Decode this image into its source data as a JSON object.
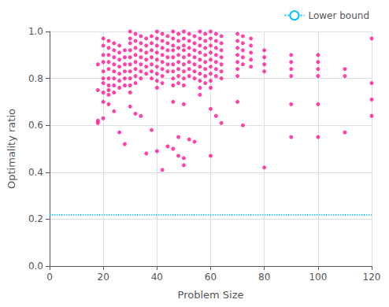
{
  "chart_data": {
    "type": "scatter",
    "xlabel": "Problem Size",
    "ylabel": "Optimality ratio",
    "color": "#FF1493",
    "x": [
      18,
      18,
      18,
      18,
      20,
      20,
      20,
      20,
      20,
      20,
      20,
      20,
      20,
      20,
      22,
      22,
      22,
      22,
      22,
      22,
      22,
      22,
      22,
      22,
      24,
      24,
      24,
      24,
      24,
      24,
      24,
      24,
      24,
      26,
      26,
      26,
      26,
      26,
      26,
      26,
      26,
      28,
      28,
      28,
      28,
      28,
      28,
      28,
      30,
      30,
      30,
      30,
      30,
      30,
      30,
      30,
      30,
      30,
      30,
      32,
      32,
      32,
      32,
      32,
      32,
      32,
      32,
      32,
      34,
      34,
      34,
      34,
      34,
      34,
      34,
      34,
      36,
      36,
      36,
      36,
      36,
      36,
      36,
      38,
      38,
      38,
      38,
      38,
      38,
      38,
      38,
      40,
      40,
      40,
      40,
      40,
      40,
      40,
      40,
      40,
      40,
      42,
      42,
      42,
      42,
      42,
      42,
      42,
      42,
      42,
      44,
      44,
      44,
      44,
      44,
      44,
      44,
      46,
      46,
      46,
      46,
      46,
      46,
      46,
      46,
      46,
      46,
      46,
      48,
      48,
      48,
      48,
      48,
      48,
      48,
      48,
      48,
      48,
      50,
      50,
      50,
      50,
      50,
      50,
      50,
      50,
      50,
      50,
      50,
      50,
      52,
      52,
      52,
      52,
      52,
      52,
      52,
      52,
      54,
      54,
      54,
      54,
      54,
      54,
      54,
      54,
      56,
      56,
      56,
      56,
      56,
      56,
      56,
      56,
      56,
      56,
      58,
      58,
      58,
      58,
      58,
      58,
      58,
      58,
      60,
      60,
      60,
      60,
      60,
      60,
      60,
      60,
      60,
      60,
      60,
      62,
      62,
      62,
      62,
      62,
      62,
      62,
      62,
      64,
      64,
      64,
      64,
      64,
      64,
      64,
      64,
      70,
      70,
      70,
      70,
      70,
      70,
      70,
      70,
      72,
      72,
      72,
      72,
      72,
      72,
      75,
      75,
      75,
      75,
      75,
      80,
      80,
      80,
      80,
      80,
      90,
      90,
      90,
      90,
      90,
      90,
      100,
      100,
      100,
      100,
      100,
      100,
      110,
      110,
      110,
      120,
      120,
      120,
      120
    ],
    "values": [
      0.86,
      0.75,
      0.62,
      0.61,
      0.97,
      0.94,
      0.9,
      0.87,
      0.83,
      0.8,
      0.78,
      0.74,
      0.7,
      0.63,
      0.96,
      0.93,
      0.9,
      0.87,
      0.84,
      0.8,
      0.77,
      0.75,
      0.73,
      0.69,
      0.95,
      0.92,
      0.89,
      0.86,
      0.83,
      0.8,
      0.77,
      0.74,
      0.66,
      0.94,
      0.91,
      0.88,
      0.85,
      0.82,
      0.79,
      0.76,
      0.57,
      0.92,
      0.89,
      0.86,
      0.83,
      0.8,
      0.77,
      0.52,
      1.0,
      0.97,
      0.95,
      0.92,
      0.89,
      0.86,
      0.83,
      0.8,
      0.77,
      0.74,
      0.68,
      0.99,
      0.96,
      0.93,
      0.9,
      0.87,
      0.84,
      0.81,
      0.78,
      0.65,
      0.98,
      0.95,
      0.92,
      0.89,
      0.86,
      0.83,
      0.8,
      0.64,
      0.97,
      0.94,
      0.91,
      0.88,
      0.85,
      0.82,
      0.48,
      0.98,
      0.95,
      0.92,
      0.89,
      0.86,
      0.83,
      0.8,
      0.58,
      1.0,
      0.97,
      0.94,
      0.91,
      0.88,
      0.85,
      0.82,
      0.79,
      0.76,
      0.49,
      0.99,
      0.96,
      0.93,
      0.9,
      0.87,
      0.84,
      0.81,
      0.78,
      0.41,
      0.98,
      0.95,
      0.92,
      0.89,
      0.86,
      0.83,
      0.51,
      1.0,
      0.97,
      0.94,
      0.92,
      0.89,
      0.86,
      0.83,
      0.8,
      0.77,
      0.7,
      0.5,
      0.99,
      0.96,
      0.93,
      0.9,
      0.87,
      0.84,
      0.81,
      0.78,
      0.55,
      0.47,
      1.0,
      0.97,
      0.94,
      0.92,
      0.89,
      0.86,
      0.83,
      0.8,
      0.77,
      0.69,
      0.46,
      0.43,
      0.99,
      0.96,
      0.93,
      0.9,
      0.87,
      0.84,
      0.81,
      0.54,
      0.98,
      0.95,
      0.92,
      0.89,
      0.86,
      0.83,
      0.8,
      0.53,
      1.0,
      0.97,
      0.94,
      0.91,
      0.88,
      0.85,
      0.82,
      0.79,
      0.76,
      0.73,
      0.99,
      0.96,
      0.93,
      0.9,
      0.87,
      0.84,
      0.81,
      0.78,
      1.0,
      0.97,
      0.94,
      0.91,
      0.88,
      0.85,
      0.82,
      0.79,
      0.76,
      0.67,
      0.47,
      0.99,
      0.96,
      0.93,
      0.9,
      0.87,
      0.84,
      0.81,
      0.64,
      0.98,
      0.95,
      0.92,
      0.89,
      0.86,
      0.83,
      0.8,
      0.61,
      0.99,
      0.96,
      0.93,
      0.9,
      0.87,
      0.84,
      0.81,
      0.7,
      0.98,
      0.95,
      0.92,
      0.89,
      0.86,
      0.6,
      0.97,
      0.94,
      0.91,
      0.88,
      0.85,
      0.92,
      0.89,
      0.86,
      0.83,
      0.42,
      0.9,
      0.87,
      0.84,
      0.81,
      0.69,
      0.55,
      0.9,
      0.87,
      0.84,
      0.81,
      0.69,
      0.55,
      0.84,
      0.81,
      0.57,
      0.97,
      0.78,
      0.71,
      0.64
    ],
    "lower_bound": {
      "name": "Lower bound",
      "value": 0.219,
      "color": "#00BFFF",
      "line_style": "dotted"
    },
    "xlim": [
      0,
      120
    ],
    "ylim": [
      0,
      1
    ],
    "xticks": [
      0,
      20,
      40,
      60,
      80,
      100,
      120
    ],
    "yticks": [
      {
        "value": 0,
        "label": "0.0"
      },
      0.2,
      0.4,
      0.6,
      0.8,
      {
        "value": 1,
        "label": "1.0"
      }
    ],
    "grid": true,
    "legend": "upper right"
  }
}
